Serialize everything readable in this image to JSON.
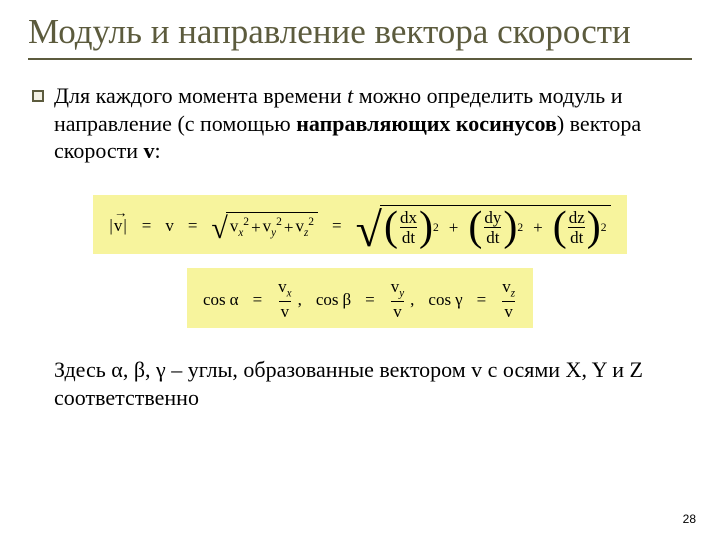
{
  "title": "Модуль и направление вектора скорости",
  "para1_part1": "Для каждого момента времени ",
  "para1_time": "t",
  "para1_part2": " можно определить модуль и направление (с помощью ",
  "para1_bold": "направляющих косинусов",
  "para1_part3": ") вектора скорости ",
  "para1_v": "v",
  "para1_end": ":",
  "formula1": {
    "lhs_abs": "v",
    "eq": "=",
    "v": "v",
    "terms": {
      "vx": "v",
      "vy": "v",
      "vz": "v",
      "x": "x",
      "y": "y",
      "z": "z"
    },
    "sq": "2",
    "dx": "dx",
    "dy": "dy",
    "dz": "dz",
    "dt": "dt",
    "plus": "+"
  },
  "formula2": {
    "cos": "cos",
    "alpha": "α",
    "beta": "β",
    "gamma": "γ",
    "eq": "=",
    "vx": "v",
    "vy": "v",
    "vz": "v",
    "x": "x",
    "y": "y",
    "z": "z",
    "v": "v",
    "sep": ","
  },
  "para2_part1": "Здесь ",
  "para2_alpha": "α",
  "para2_c1": ", ",
  "para2_beta": "β",
  "para2_c2": ", ",
  "para2_gamma": "γ",
  "para2_part2": " – углы, образованные вектором ",
  "para2_v": "v",
  "para2_part3": " с осями ",
  "para2_X": "X",
  "para2_c3": ", ",
  "para2_Y": "Y",
  "para2_and": " и ",
  "para2_Z": "Z",
  "para2_end": " соответственно",
  "slide_number": "28",
  "colors": {
    "title": "#5c5b3d",
    "formula_bg": "#f7f49d",
    "text": "#000000",
    "page_bg": "#ffffff"
  }
}
